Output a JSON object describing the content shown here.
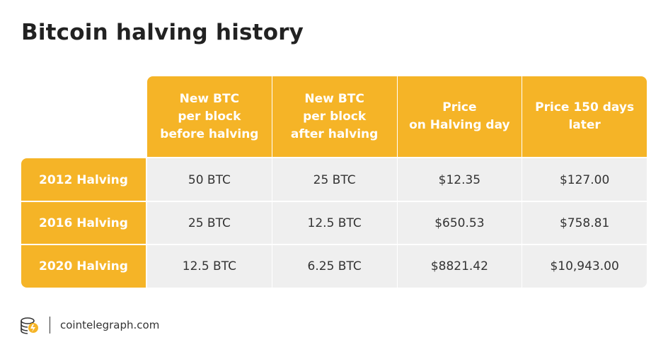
{
  "title": "Bitcoin halving history",
  "colors": {
    "accent": "#f5b427",
    "cell_bg": "#efefef",
    "text": "#333333"
  },
  "chart_data": {
    "type": "table",
    "title": "Bitcoin halving history",
    "columns": [
      "New BTC\nper block\nbefore halving",
      "New BTC\nper block\nafter halving",
      "Price\non Halving day",
      "Price 150 days\nlater"
    ],
    "rows": [
      {
        "label": "2012 Halving",
        "cells": [
          "50 BTC",
          "25 BTC",
          "$12.35",
          "$127.00"
        ]
      },
      {
        "label": "2016 Halving",
        "cells": [
          "25 BTC",
          "12.5 BTC",
          "$650.53",
          "$758.81"
        ]
      },
      {
        "label": "2020 Halving",
        "cells": [
          "12.5 BTC",
          "6.25 BTC",
          "$8821.42",
          "$10,943.00"
        ]
      }
    ]
  },
  "footer": {
    "logo_icon": "cointelegraph-logo-icon",
    "site": "cointelegraph.com"
  }
}
